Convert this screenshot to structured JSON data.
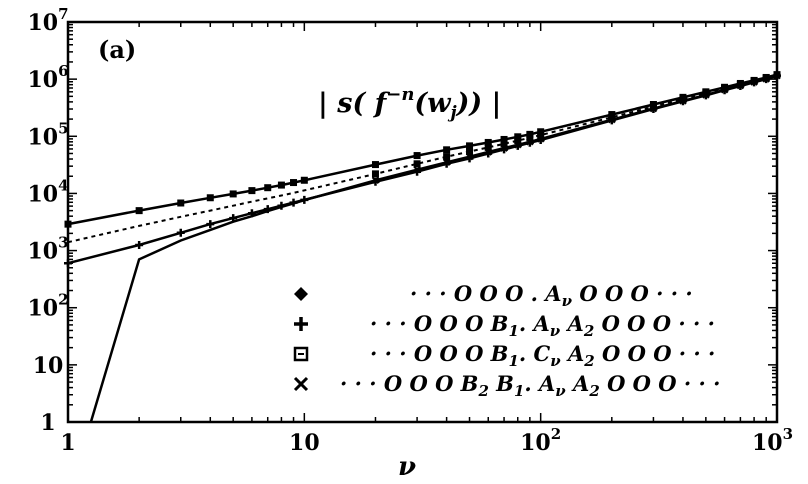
{
  "chart_data": {
    "type": "line",
    "panel_label": "(a)",
    "annotation": "| s( f^{-n}(w_j)) |",
    "xlabel": "ν",
    "ylabel": "",
    "x_scale": "log",
    "y_scale": "log",
    "xlim": [
      1,
      1000
    ],
    "ylim": [
      1,
      10000000
    ],
    "x_ticks": [
      {
        "value": 1,
        "base": "1",
        "exp": ""
      },
      {
        "value": 10,
        "base": "10",
        "exp": ""
      },
      {
        "value": 100,
        "base": "10",
        "exp": "2"
      },
      {
        "value": 1000,
        "base": "10",
        "exp": "3"
      }
    ],
    "y_ticks": [
      {
        "value": 1,
        "base": "1",
        "exp": ""
      },
      {
        "value": 10,
        "base": "10",
        "exp": ""
      },
      {
        "value": 100,
        "base": "10",
        "exp": "2"
      },
      {
        "value": 1000,
        "base": "10",
        "exp": "3"
      },
      {
        "value": 10000,
        "base": "10",
        "exp": "4"
      },
      {
        "value": 100000,
        "base": "10",
        "exp": "5"
      },
      {
        "value": 1000000,
        "base": "10",
        "exp": "6"
      },
      {
        "value": 10000000,
        "base": "10",
        "exp": "7"
      }
    ],
    "grid": false,
    "legend_position": "bottom-right",
    "series": [
      {
        "name": "· · · O O O . A_ν O O O · · ·",
        "marker": "diamond",
        "x": [
          1,
          2,
          3,
          4,
          5,
          6,
          7,
          8,
          9,
          10,
          20,
          30,
          40,
          50,
          60,
          70,
          80,
          90,
          100,
          200,
          300,
          400,
          500,
          600,
          700,
          800,
          900,
          1000
        ],
        "y": [
          2900,
          5000,
          6800,
          8400,
          9800,
          11200,
          12600,
          14000,
          15500,
          17000,
          32000,
          46000,
          58000,
          68000,
          78000,
          88000,
          98000,
          108000,
          120000,
          240000,
          360000,
          480000,
          600000,
          720000,
          840000,
          950000,
          1070000,
          1200000
        ]
      },
      {
        "name": "· · · O O O B1 . A_ν A2 O O O · · ·",
        "marker": "plus",
        "x": [
          1,
          2,
          3,
          4,
          5,
          6,
          7,
          8,
          9,
          10,
          20,
          30,
          40,
          50,
          60,
          70,
          80,
          90,
          100,
          200,
          300,
          400,
          500,
          600,
          700,
          800,
          900,
          1000
        ],
        "y": [
          600,
          1250,
          2050,
          2900,
          3700,
          4500,
          5300,
          6100,
          6900,
          7700,
          16000,
          24000,
          33000,
          41000,
          50000,
          59000,
          68000,
          77000,
          86000,
          190000,
          300000,
          410000,
          520000,
          640000,
          760000,
          880000,
          1000000,
          1150000
        ]
      },
      {
        "name": "· · · O O O B1 . C_ν A2 O O O · · ·",
        "marker": "square",
        "x": [
          1,
          2,
          3,
          4,
          5,
          6,
          7,
          8,
          9,
          10,
          20,
          30,
          40,
          50,
          60,
          70,
          80,
          90,
          100,
          200,
          300,
          400,
          500,
          600,
          700,
          800,
          900,
          1000
        ],
        "y": [
          1400,
          2700,
          3900,
          5000,
          6100,
          7200,
          8200,
          9200,
          10200,
          11300,
          22000,
          33000,
          44000,
          54000,
          64000,
          74000,
          84000,
          94000,
          105000,
          215000,
          330000,
          450000,
          570000,
          690000,
          810000,
          930000,
          1050000,
          1180000
        ]
      },
      {
        "name": "· · · O O O B2 B1 . A_ν A2 O O O · · ·",
        "marker": "x",
        "x": [
          1.25,
          2,
          3,
          4,
          5,
          6,
          7,
          8,
          9,
          10,
          20,
          30,
          40,
          50,
          60,
          70,
          80,
          90,
          100,
          200,
          300,
          400,
          500,
          600,
          700,
          800,
          900,
          1000
        ],
        "y": [
          1,
          700,
          1500,
          2300,
          3200,
          4000,
          4900,
          5800,
          6700,
          7600,
          17000,
          26000,
          35000,
          44000,
          53000,
          62000,
          71000,
          80000,
          90000,
          195000,
          305000,
          415000,
          530000,
          650000,
          770000,
          890000,
          1010000,
          1150000
        ]
      }
    ]
  },
  "legend_labels": [
    {
      "dots_left": "· · ·",
      "seq": "O O O . A",
      "sub": "ν",
      "seq2": " O O O",
      "dots_right": "· · ·"
    },
    {
      "dots_left": "· · ·",
      "seq": "O O O B",
      "sub": "1",
      "seq2": ". A",
      "sub2": "ν",
      "seq3": " A",
      "sub3": "2",
      "seq4": " O O O",
      "dots_right": "· · ·"
    },
    {
      "dots_left": "· · ·",
      "seq": "O O O B",
      "sub": "1",
      "seq2": ". C",
      "sub2": "ν",
      "seq3": " A",
      "sub3": "2",
      "seq4": " O O O",
      "dots_right": "· · ·"
    },
    {
      "dots_left": "· · ·",
      "seq": "O O O B",
      "sub": "2",
      "seq2": " B",
      "sub2": "1",
      "seq3": ". A",
      "sub3": "ν",
      "seq4": " A",
      "sub4": "2",
      "seq5": " O O O",
      "dots_right": "· · ·"
    }
  ]
}
